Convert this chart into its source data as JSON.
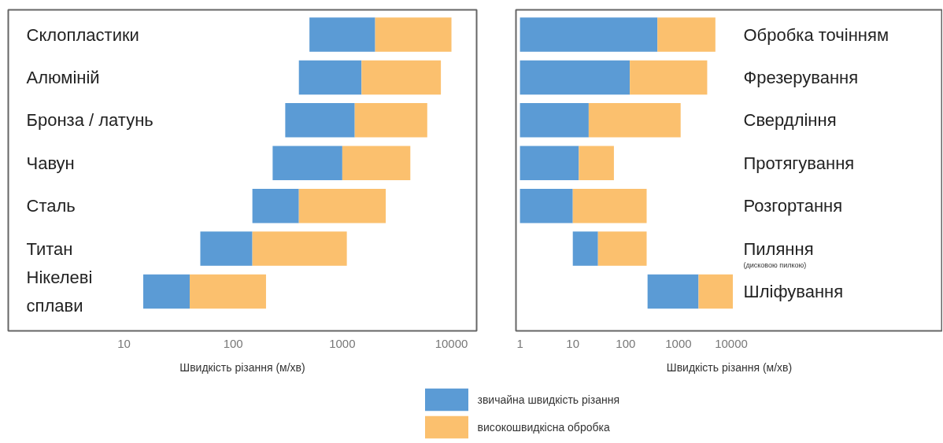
{
  "chart_data": [
    {
      "type": "bar",
      "orientation": "horizontal",
      "log": "x",
      "grid": false,
      "legend": "bottom",
      "categories": [
        "Склопластики",
        "Алюміній",
        "Бронза / латунь",
        "Чавун",
        "Сталь",
        "Титан",
        "Нікелеві\nсплави"
      ],
      "series": [
        {
          "name": "звичайна швидкість різання",
          "color": "#5b9bd5",
          "base": [
            500,
            400,
            300,
            230,
            150,
            50,
            15
          ],
          "values": [
            1500,
            1100,
            1000,
            770,
            250,
            100,
            25
          ]
        },
        {
          "name": "високошвидкісна обробка",
          "color": "#fbc06e",
          "base": [
            2000,
            1500,
            1300,
            1000,
            400,
            150,
            40
          ],
          "values": [
            8000,
            6500,
            4700,
            3200,
            2100,
            950,
            160
          ]
        }
      ],
      "xlim": [
        0.87,
        17000
      ],
      "xticks": [
        10,
        100,
        1000,
        10000
      ],
      "xlabel": "Швидкість різання (м/хв)"
    },
    {
      "type": "bar",
      "orientation": "horizontal",
      "log": "x",
      "grid": false,
      "categories": [
        "Обробка точінням",
        "Фрезерування",
        "Свердління",
        "Протягування",
        "Розгортання",
        "Пиляння",
        "Шліфування"
      ],
      "series": [
        {
          "color": "#5b9bd5",
          "base": [
            1,
            1,
            1,
            1,
            1,
            10,
            260
          ],
          "values": [
            399,
            119,
            19,
            12,
            9,
            20,
            2140
          ]
        },
        {
          "color": "#fbc06e",
          "base": [
            400,
            120,
            20,
            13,
            10,
            30,
            2400
          ],
          "values": [
            4600,
            3380,
            1080,
            47,
            240,
            220,
            8300
          ]
        }
      ],
      "annotations": [
        "(дисковою пилкою)"
      ],
      "xlim": [
        0.84,
        100000000
      ],
      "xticks": [
        1,
        10,
        100,
        1000,
        10000
      ],
      "xlabel": "Швидкість різання (м/хв)"
    }
  ]
}
